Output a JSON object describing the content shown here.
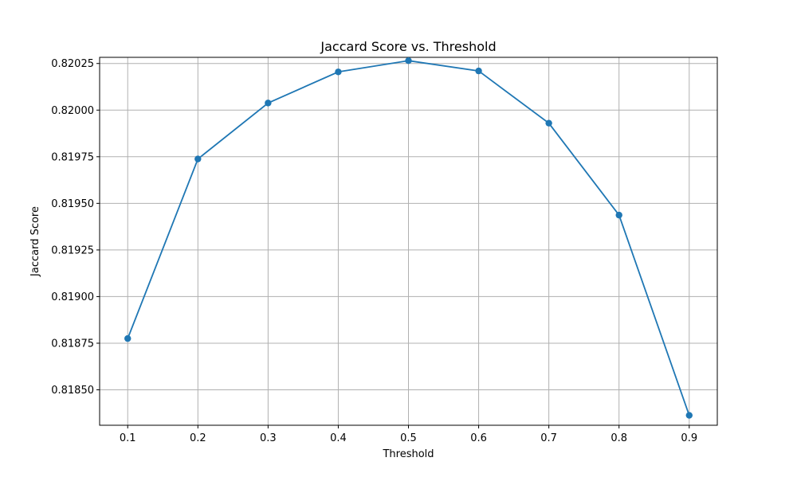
{
  "chart_data": {
    "type": "line",
    "title": "Jaccard Score vs. Threshold",
    "xlabel": "Threshold",
    "ylabel": "Jaccard Score",
    "x": [
      0.1,
      0.2,
      0.3,
      0.4,
      0.5,
      0.6,
      0.7,
      0.8,
      0.9
    ],
    "series": [
      {
        "values": [
          0.818775,
          0.819738,
          0.820038,
          0.820205,
          0.820265,
          0.82021,
          0.81993,
          0.819437,
          0.818363
        ]
      }
    ],
    "xticks": [
      0.1,
      0.2,
      0.3,
      0.4,
      0.5,
      0.6,
      0.7,
      0.8,
      0.9
    ],
    "xtick_labels": [
      "0.1",
      "0.2",
      "0.3",
      "0.4",
      "0.5",
      "0.6",
      "0.7",
      "0.8",
      "0.9"
    ],
    "yticks": [
      0.8185,
      0.81875,
      0.819,
      0.81925,
      0.8195,
      0.81975,
      0.82,
      0.82025
    ],
    "ytick_labels": [
      "0.81850",
      "0.81875",
      "0.81900",
      "0.81925",
      "0.81950",
      "0.81975",
      "0.82000",
      "0.82025"
    ],
    "xlim": [
      0.06,
      0.94
    ],
    "ylim": [
      0.81831,
      0.820283
    ],
    "grid": true,
    "line_color": "#1f77b4",
    "grid_color": "#b0b0b0",
    "marker": "circle"
  }
}
